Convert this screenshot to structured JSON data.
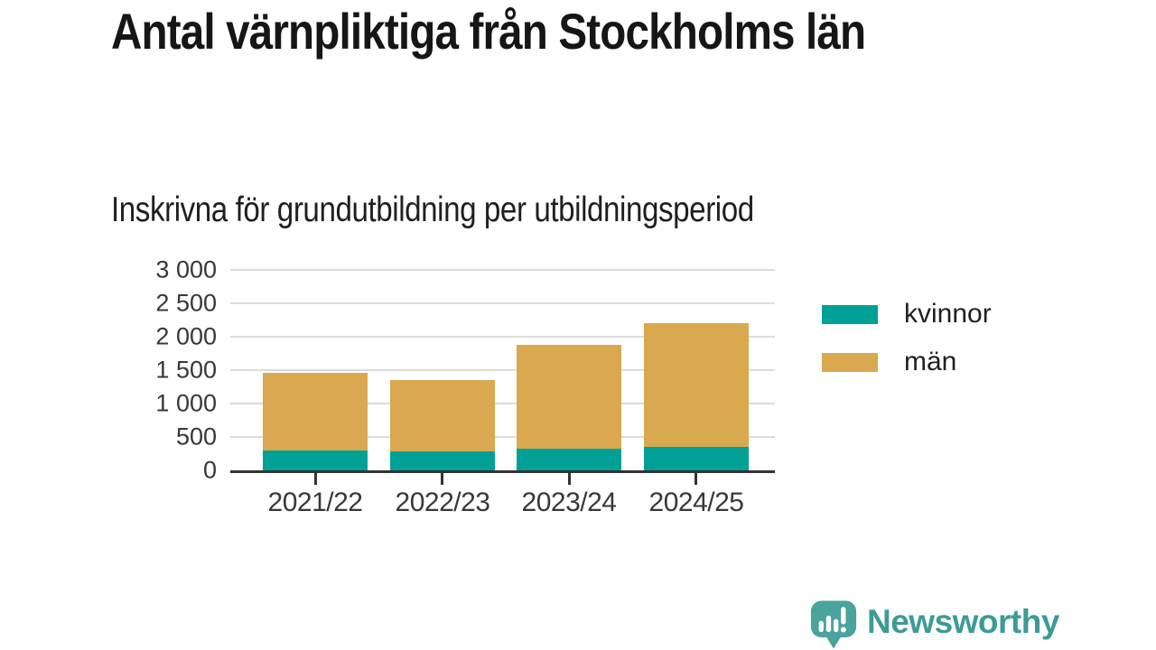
{
  "title": "Antal värnpliktiga från Stockholms län",
  "subtitle": "Inskrivna för grundutbildning per utbildningsperiod",
  "chart_data": {
    "type": "bar",
    "stacked": true,
    "title": "Antal värnpliktiga från Stockholms län",
    "subtitle": "Inskrivna för grundutbildning per utbildningsperiod",
    "categories": [
      "2021/22",
      "2022/23",
      "2023/24",
      "2024/25"
    ],
    "series": [
      {
        "name": "kvinnor",
        "color": "#00a096",
        "values": [
          300,
          290,
          330,
          350
        ]
      },
      {
        "name": "män",
        "color": "#d9a84f",
        "values": [
          1160,
          1070,
          1550,
          1850
        ]
      }
    ],
    "totals": [
      1460,
      1360,
      1880,
      2200
    ],
    "xlabel": "",
    "ylabel": "",
    "ylim": [
      0,
      3000
    ],
    "ytick_step": 500,
    "ytick_labels": [
      "0",
      "500",
      "1 000",
      "1 500",
      "2 000",
      "2 500",
      "3 000"
    ],
    "grid": "horizontal",
    "legend_position": "right"
  },
  "legend": {
    "items": [
      {
        "label": "kvinnor",
        "color": "#00a096"
      },
      {
        "label": "män",
        "color": "#d9a84f"
      }
    ]
  },
  "branding": {
    "logo_text": "Newsworthy",
    "text_color": "#3d9b94",
    "icon_color": "#4aa39c",
    "icon": "newsworthy-bubble-barchart-icon"
  },
  "style_colors": {
    "gridline": "#dcdcdc",
    "axis": "#333333",
    "tick_text": "#383838"
  }
}
